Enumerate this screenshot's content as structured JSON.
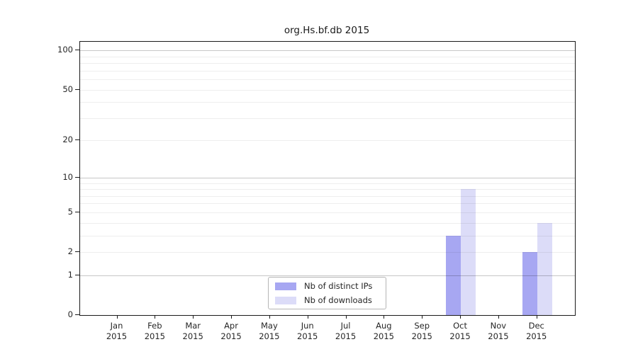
{
  "title": "org.Hs.bf.db 2015",
  "legend": {
    "items": [
      {
        "label": "Nb of distinct IPs",
        "color": "#a7a7f2"
      },
      {
        "label": "Nb of downloads",
        "color": "#dcdcf8"
      }
    ]
  },
  "chart_data": {
    "type": "bar",
    "title": "org.Hs.bf.db 2015",
    "categories": [
      "Jan",
      "Feb",
      "Mar",
      "Apr",
      "May",
      "Jun",
      "Jul",
      "Aug",
      "Sep",
      "Oct",
      "Nov",
      "Dec"
    ],
    "year_label": "2015",
    "series": [
      {
        "name": "Nb of distinct IPs",
        "color": "#a7a7f2",
        "values": [
          0,
          0,
          0,
          0,
          0,
          0,
          0,
          0,
          0,
          3,
          0,
          2
        ]
      },
      {
        "name": "Nb of downloads",
        "color": "#dcdcf8",
        "values": [
          0,
          0,
          0,
          0,
          0,
          0,
          0,
          0,
          0,
          8,
          0,
          4
        ]
      }
    ],
    "xlabel": "",
    "ylabel": "",
    "y_scale": "log10(1+value)",
    "ylim": [
      0,
      117
    ],
    "y_ticks": [
      {
        "label": "100",
        "value": 100
      },
      {
        "label": "50",
        "value": 50
      },
      {
        "label": "20",
        "value": 20
      },
      {
        "label": "10",
        "value": 10
      },
      {
        "label": "5",
        "value": 5
      },
      {
        "label": "2",
        "value": 2
      },
      {
        "label": "1",
        "value": 1
      },
      {
        "label": "0",
        "value": 0
      }
    ],
    "y_gridlines_major": [
      1,
      10,
      100
    ],
    "y_gridlines_minor": [
      2,
      3,
      4,
      5,
      6,
      7,
      8,
      9,
      20,
      30,
      40,
      50,
      60,
      70,
      80,
      90
    ],
    "grid": true,
    "legend_position": "bottom-center"
  }
}
